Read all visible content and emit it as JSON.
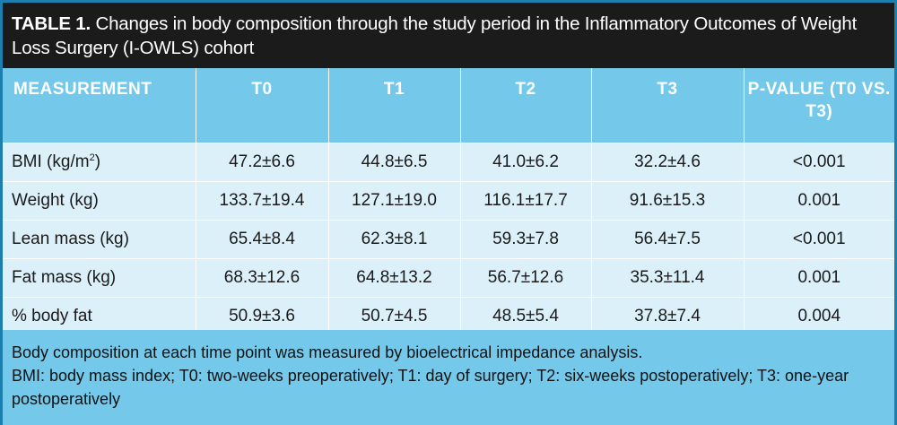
{
  "title": {
    "label": "TABLE 1.",
    "text": " Changes in body composition through the study period in the Inflammatory Outcomes of Weight Loss Surgery (I-OWLS) cohort"
  },
  "table": {
    "headers": [
      "MEASUREMENT",
      "T0",
      "T1",
      "T2",
      "T3",
      "P-VALUE (T0 VS. T3)"
    ],
    "rows": [
      {
        "label": "BMI (kg/m",
        "label_sup": "2",
        "label_end": ")",
        "values": [
          "47.2±6.6",
          "44.8±6.5",
          "41.0±6.2",
          "32.2±4.6",
          "<0.001"
        ]
      },
      {
        "label": "Weight (kg)",
        "values": [
          "133.7±19.4",
          "127.1±19.0",
          "116.1±17.7",
          "91.6±15.3",
          "0.001"
        ]
      },
      {
        "label": "Lean mass (kg)",
        "values": [
          "65.4±8.4",
          "62.3±8.1",
          "59.3±7.8",
          "56.4±7.5",
          "<0.001"
        ]
      },
      {
        "label": "Fat mass (kg)",
        "values": [
          "68.3±12.6",
          "64.8±13.2",
          "56.7±12.6",
          "35.3±11.4",
          "0.001"
        ]
      },
      {
        "label": "% body fat",
        "values": [
          "50.9±3.6",
          "50.7±4.5",
          "48.5±5.4",
          "37.8±7.4",
          "0.004"
        ]
      }
    ]
  },
  "footnote": {
    "line1": "Body composition at each time point was measured by bioelectrical impedance analysis.",
    "line2": "BMI: body mass index; T0: two-weeks preoperatively; T1: day of surgery; T2: six-weeks postoperatively; T3: one-year postoperatively"
  },
  "colors": {
    "title_bg": "#1b1b1b",
    "header_bg": "#74c9ea",
    "row_bg": "#dcf0f9",
    "border": "#1d7fae"
  }
}
